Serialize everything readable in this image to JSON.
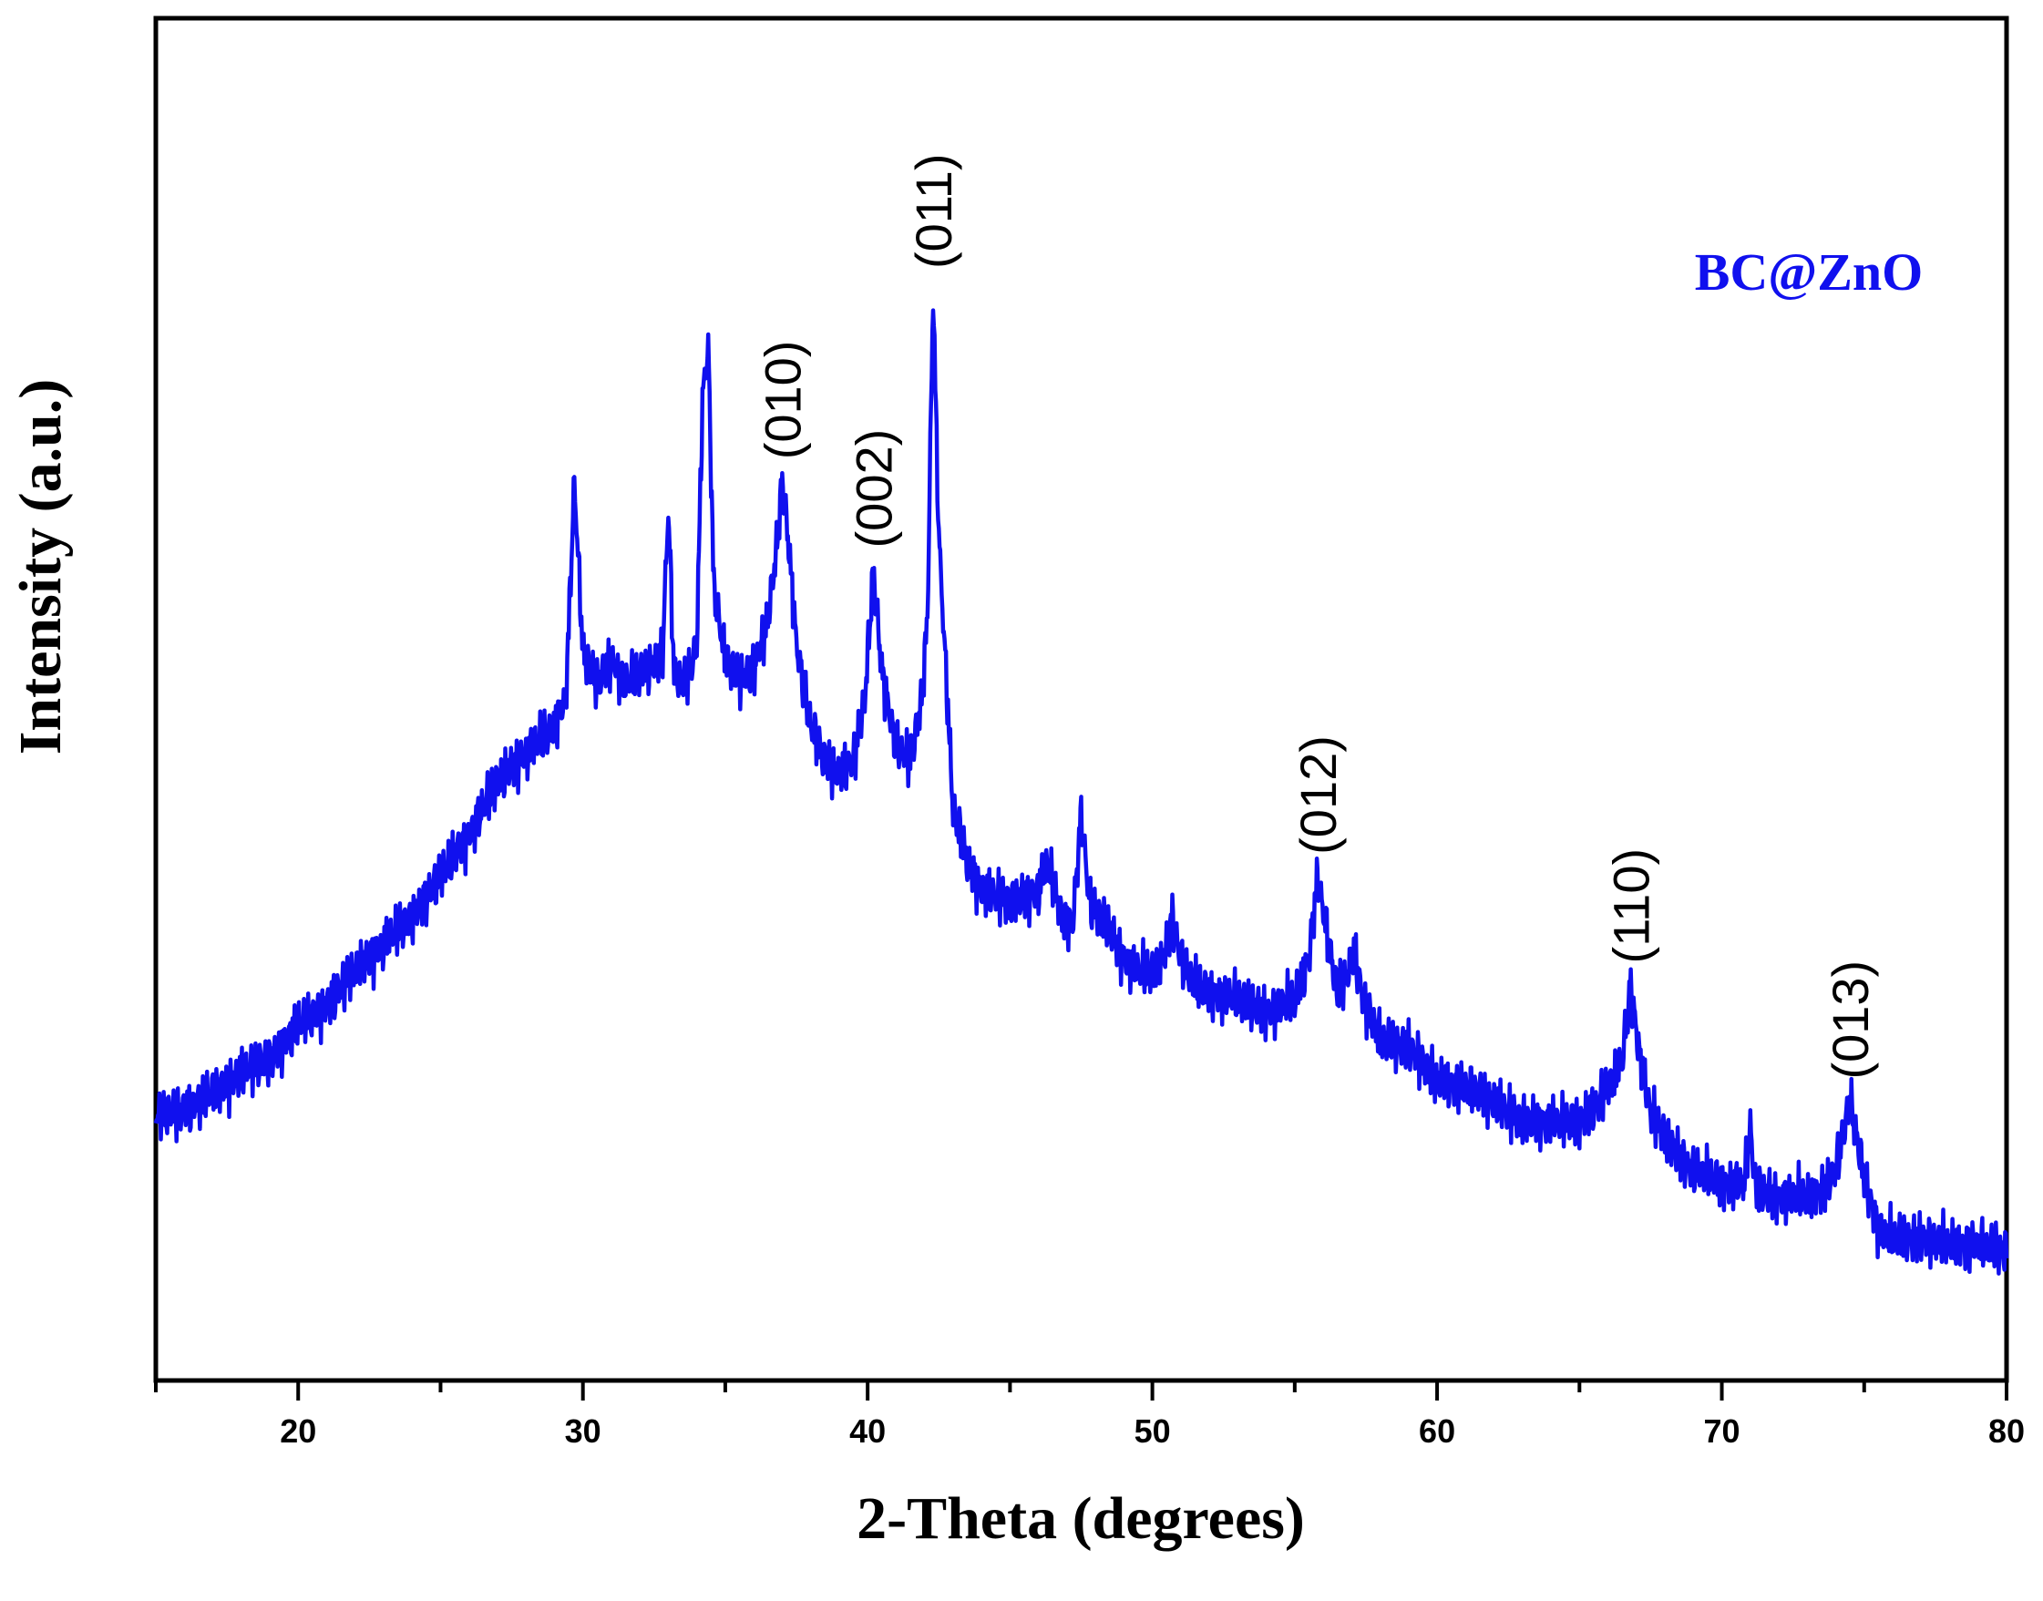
{
  "chart_data": {
    "type": "line",
    "title": "",
    "xlabel": "2-Theta (degrees)",
    "ylabel": "Intensity (a.u.)",
    "xlim": [
      15,
      80
    ],
    "ylim": [
      0,
      100
    ],
    "x_ticks": [
      20,
      30,
      40,
      50,
      60,
      70,
      80
    ],
    "x_tick_labels": [
      "20",
      "30",
      "40",
      "50",
      "60",
      "70",
      "80"
    ],
    "y_ticks_labeled": false,
    "grid": false,
    "legend_position": "top-right",
    "series": [
      {
        "name": "BC@ZnO",
        "color": "#1010ee",
        "points": [
          [
            15.0,
            19.5
          ],
          [
            16.0,
            19.8
          ],
          [
            17.0,
            21.0
          ],
          [
            18.0,
            22.5
          ],
          [
            19.0,
            23.5
          ],
          [
            20.0,
            26.0
          ],
          [
            21.0,
            27.5
          ],
          [
            22.0,
            30.0
          ],
          [
            23.0,
            32.0
          ],
          [
            24.0,
            34.0
          ],
          [
            25.0,
            37.0
          ],
          [
            26.0,
            40.0
          ],
          [
            27.0,
            44.0
          ],
          [
            28.0,
            46.0
          ],
          [
            29.0,
            48.0
          ],
          [
            29.4,
            50.0
          ],
          [
            29.7,
            66.0
          ],
          [
            30.0,
            53.5
          ],
          [
            30.5,
            51.0
          ],
          [
            31.0,
            53.0
          ],
          [
            31.5,
            51.0
          ],
          [
            32.0,
            52.0
          ],
          [
            32.5,
            52.5
          ],
          [
            32.8,
            53.5
          ],
          [
            33.0,
            64.0
          ],
          [
            33.2,
            52.0
          ],
          [
            33.6,
            51.0
          ],
          [
            34.0,
            54.0
          ],
          [
            34.2,
            72.0
          ],
          [
            34.4,
            76.0
          ],
          [
            34.6,
            58.0
          ],
          [
            35.0,
            53.0
          ],
          [
            35.5,
            51.5
          ],
          [
            36.0,
            52.0
          ],
          [
            36.5,
            56.0
          ],
          [
            36.8,
            61.0
          ],
          [
            37.0,
            66.0
          ],
          [
            37.2,
            62.0
          ],
          [
            37.5,
            54.0
          ],
          [
            38.0,
            48.0
          ],
          [
            38.5,
            45.5
          ],
          [
            39.0,
            44.5
          ],
          [
            39.5,
            45.5
          ],
          [
            39.9,
            50.0
          ],
          [
            40.2,
            59.5
          ],
          [
            40.5,
            52.0
          ],
          [
            41.0,
            46.5
          ],
          [
            41.5,
            45.5
          ],
          [
            41.9,
            50.0
          ],
          [
            42.1,
            56.0
          ],
          [
            42.3,
            80.0
          ],
          [
            42.5,
            62.0
          ],
          [
            43.0,
            42.0
          ],
          [
            43.5,
            38.0
          ],
          [
            44.0,
            36.0
          ],
          [
            45.0,
            35.0
          ],
          [
            45.5,
            35.5
          ],
          [
            46.0,
            36.0
          ],
          [
            46.3,
            38.0
          ],
          [
            46.8,
            34.0
          ],
          [
            47.2,
            33.5
          ],
          [
            47.5,
            41.5
          ],
          [
            47.8,
            35.0
          ],
          [
            48.5,
            33.0
          ],
          [
            49.0,
            31.0
          ],
          [
            49.5,
            30.0
          ],
          [
            50.0,
            30.0
          ],
          [
            50.4,
            31.0
          ],
          [
            50.7,
            34.0
          ],
          [
            51.0,
            31.0
          ],
          [
            51.5,
            29.0
          ],
          [
            52.0,
            28.5
          ],
          [
            53.0,
            28.0
          ],
          [
            54.0,
            27.0
          ],
          [
            55.0,
            28.0
          ],
          [
            55.5,
            31.0
          ],
          [
            55.8,
            37.0
          ],
          [
            56.2,
            32.0
          ],
          [
            56.5,
            28.5
          ],
          [
            56.8,
            29.5
          ],
          [
            57.1,
            31.5
          ],
          [
            57.4,
            28.0
          ],
          [
            58.0,
            25.0
          ],
          [
            59.0,
            24.5
          ],
          [
            60.0,
            22.0
          ],
          [
            61.0,
            21.5
          ],
          [
            62.0,
            20.5
          ],
          [
            63.0,
            19.0
          ],
          [
            64.0,
            19.0
          ],
          [
            65.0,
            19.0
          ],
          [
            65.5,
            20.0
          ],
          [
            66.0,
            21.5
          ],
          [
            66.5,
            23.5
          ],
          [
            66.8,
            29.0
          ],
          [
            67.1,
            24.0
          ],
          [
            67.5,
            19.5
          ],
          [
            68.0,
            18.0
          ],
          [
            68.5,
            16.5
          ],
          [
            69.0,
            15.5
          ],
          [
            70.0,
            14.5
          ],
          [
            70.8,
            14.5
          ],
          [
            71.0,
            18.5
          ],
          [
            71.2,
            14.0
          ],
          [
            72.0,
            13.5
          ],
          [
            73.0,
            13.5
          ],
          [
            73.5,
            14.0
          ],
          [
            74.0,
            15.5
          ],
          [
            74.5,
            20.5
          ],
          [
            74.9,
            16.0
          ],
          [
            75.5,
            11.0
          ],
          [
            76.0,
            10.5
          ],
          [
            77.0,
            10.5
          ],
          [
            78.0,
            10.0
          ],
          [
            79.0,
            10.0
          ],
          [
            80.0,
            9.5
          ]
        ]
      }
    ],
    "annotations": [
      {
        "text": "(010)",
        "x": 37.0,
        "y": 66.0
      },
      {
        "text": "(002)",
        "x": 40.2,
        "y": 59.5
      },
      {
        "text": "(011)",
        "x": 42.3,
        "y": 80.0
      },
      {
        "text": "(012)",
        "x": 55.8,
        "y": 37.0
      },
      {
        "text": "(110)",
        "x": 66.8,
        "y": 29.0
      },
      {
        "text": "(013)",
        "x": 74.5,
        "y": 20.5
      }
    ]
  }
}
